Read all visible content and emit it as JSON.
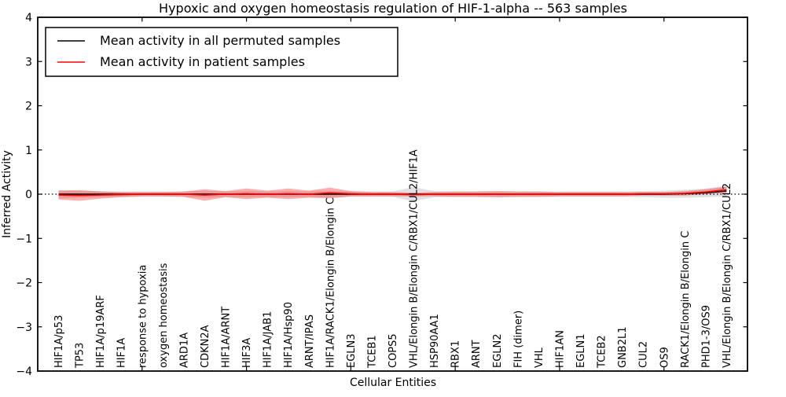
{
  "figure": {
    "title": "Hypoxic and oxygen homeostasis regulation of HIF-1-alpha -- 563 samples",
    "xlabel": "Cellular Entities",
    "ylabel": "Inferred Activity",
    "sample_count": 563
  },
  "legend": {
    "entries": [
      {
        "label": "Mean activity in all permuted samples",
        "color": "#000000"
      },
      {
        "label": "Mean activity in patient samples",
        "color": "#ff0000"
      }
    ]
  },
  "chart_data": {
    "type": "line",
    "title": "Hypoxic and oxygen homeostasis regulation of HIF-1-alpha -- 563 samples",
    "xlabel": "Cellular Entities",
    "ylabel": "Inferred Activity",
    "ylim": [
      -4,
      4
    ],
    "yticks": [
      -4,
      -3,
      -2,
      -1,
      0,
      1,
      2,
      3,
      4
    ],
    "xlim": [
      0,
      34
    ],
    "top_axis_ticks_at": [
      5,
      10,
      15,
      20,
      25,
      30
    ],
    "grid": false,
    "legend_position": "upper left",
    "zero_line": {
      "y": 0,
      "style": "dotted",
      "color": "#000000"
    },
    "categories": [
      "HIF1A/p53",
      "TP53",
      "HIF1A/p19ARF",
      "HIF1A",
      "response to hypoxia",
      "oxygen homeostasis",
      "ARD1A",
      "CDKN2A",
      "HIF1A/ARNT",
      "HIF3A",
      "HIF1A/JAB1",
      "HIF1A/Hsp90",
      "ARNT/IPAS",
      "HIF1A/RACK1/Elongin B/Elongin C",
      "EGLN3",
      "TCEB1",
      "COPS5",
      "VHL/Elongin B/Elongin C/RBX1/CUL2/HIF1A",
      "HSP90AA1",
      "RBX1",
      "ARNT",
      "EGLN2",
      "FIH (dimer)",
      "VHL",
      "HIF1AN",
      "EGLN1",
      "TCEB2",
      "GNB2L1",
      "CUL2",
      "OS9",
      "RACK1/Elongin B/Elongin C",
      "PHD1-3/OS9",
      "VHL/Elongin B/Elongin C/RBX1/CUL2"
    ],
    "series": [
      {
        "name": "Mean activity in all permuted samples",
        "color": "#000000",
        "band_color": "#c8c8c8",
        "band_opacity": 0.55,
        "values": [
          0,
          0,
          0,
          0,
          0,
          0,
          0,
          0,
          0,
          0,
          0,
          0,
          0,
          0,
          0,
          0,
          0,
          0,
          0,
          0,
          0,
          0,
          0,
          0,
          0,
          0,
          0,
          0,
          0,
          0,
          0.01,
          0.03,
          0.07
        ],
        "band_upper": [
          0.09,
          0.08,
          0.07,
          0.06,
          0.06,
          0.06,
          0.06,
          0.08,
          0.06,
          0.07,
          0.06,
          0.07,
          0.06,
          0.08,
          0.06,
          0.06,
          0.06,
          0.16,
          0.07,
          0.06,
          0.06,
          0.06,
          0.06,
          0.06,
          0.06,
          0.06,
          0.06,
          0.06,
          0.07,
          0.08,
          0.1,
          0.13,
          0.19
        ],
        "band_lower": [
          -0.09,
          -0.08,
          -0.07,
          -0.06,
          -0.06,
          -0.06,
          -0.06,
          -0.08,
          -0.06,
          -0.07,
          -0.06,
          -0.07,
          -0.06,
          -0.08,
          -0.06,
          -0.06,
          -0.06,
          -0.16,
          -0.07,
          -0.06,
          -0.06,
          -0.06,
          -0.06,
          -0.06,
          -0.06,
          -0.06,
          -0.06,
          -0.06,
          -0.07,
          -0.08,
          -0.08,
          -0.07,
          -0.05
        ]
      },
      {
        "name": "Mean activity in patient samples",
        "color": "#ff0000",
        "band_color": "#ff0000",
        "band_opacity": 0.32,
        "values": [
          -0.02,
          -0.03,
          -0.02,
          -0.01,
          0,
          0,
          0,
          -0.02,
          0,
          0.01,
          0,
          0.01,
          0,
          0.03,
          0.01,
          0,
          0,
          -0.01,
          0,
          0,
          0,
          0,
          0,
          0,
          0,
          0,
          0,
          0,
          0.01,
          0.01,
          0.02,
          0.05,
          0.1
        ],
        "band_upper": [
          0.08,
          0.09,
          0.06,
          0.05,
          0.05,
          0.05,
          0.06,
          0.11,
          0.07,
          0.13,
          0.08,
          0.13,
          0.08,
          0.15,
          0.07,
          0.05,
          0.05,
          0.03,
          0.05,
          0.06,
          0.06,
          0.07,
          0.06,
          0.06,
          0.05,
          0.05,
          0.05,
          0.05,
          0.05,
          0.05,
          0.07,
          0.11,
          0.17
        ],
        "band_lower": [
          -0.12,
          -0.15,
          -0.1,
          -0.07,
          -0.05,
          -0.05,
          -0.06,
          -0.15,
          -0.07,
          -0.11,
          -0.08,
          -0.11,
          -0.08,
          -0.09,
          -0.05,
          -0.05,
          -0.05,
          -0.05,
          -0.05,
          -0.06,
          -0.06,
          -0.07,
          -0.06,
          -0.06,
          -0.05,
          -0.05,
          -0.05,
          -0.05,
          -0.03,
          -0.03,
          -0.03,
          0.0,
          0.03
        ]
      }
    ]
  }
}
